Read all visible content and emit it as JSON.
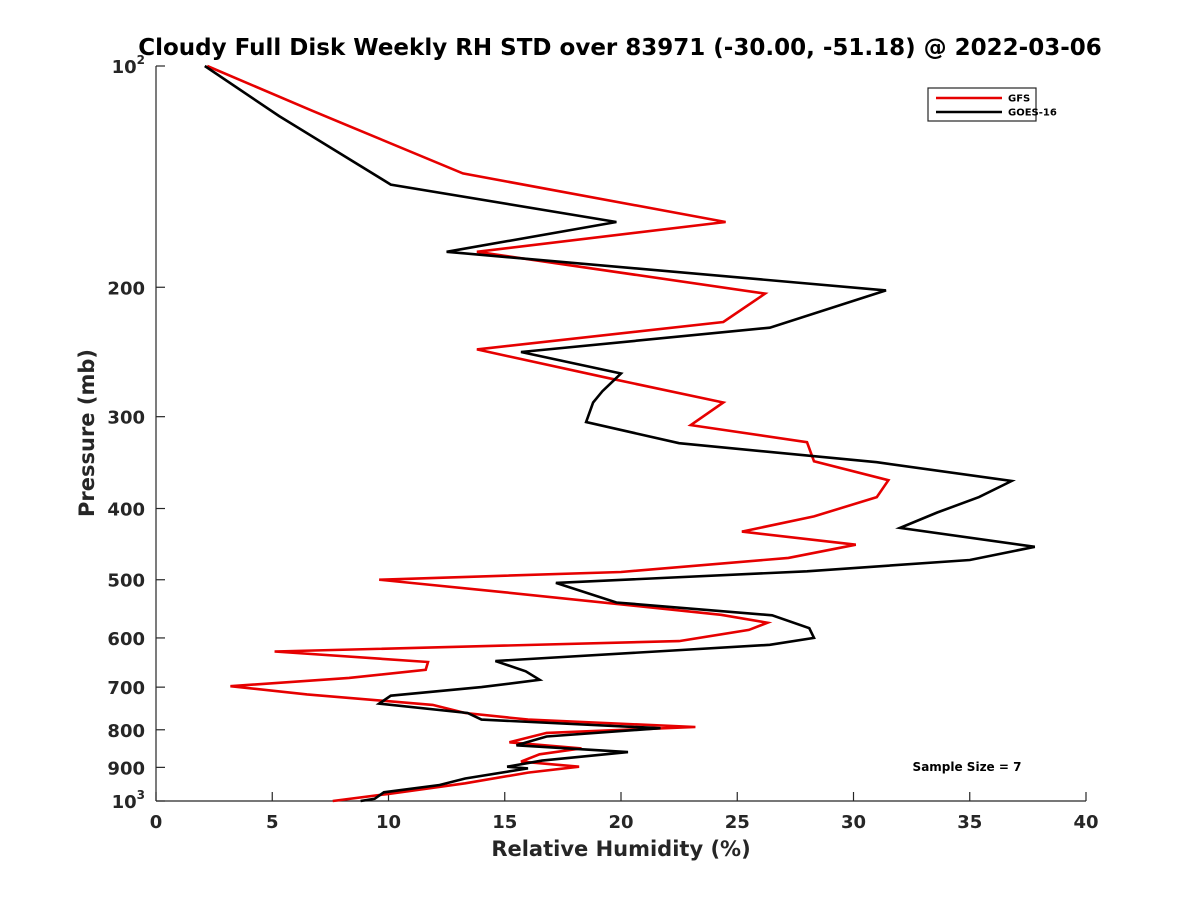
{
  "chart_data": {
    "type": "line",
    "title": "Cloudy Full Disk Weekly RH STD over 83971 (-30.00, -51.18) @ 2022-03-06",
    "xlabel": "Relative Humidity (%)",
    "ylabel": "Pressure (mb)",
    "xlim": [
      0,
      40
    ],
    "ylim": [
      100,
      1000
    ],
    "y_scale": "log",
    "y_reversed": true,
    "x_ticks": [
      0,
      5,
      10,
      15,
      20,
      25,
      30,
      35,
      40
    ],
    "y_ticks": [
      {
        "value": 100,
        "label": "10",
        "sup": "2"
      },
      {
        "value": 200,
        "label": "200"
      },
      {
        "value": 300,
        "label": "300"
      },
      {
        "value": 400,
        "label": "400"
      },
      {
        "value": 500,
        "label": "500"
      },
      {
        "value": 600,
        "label": "600"
      },
      {
        "value": 700,
        "label": "700"
      },
      {
        "value": 800,
        "label": "800"
      },
      {
        "value": 900,
        "label": "900"
      },
      {
        "value": 1000,
        "label": "10",
        "sup": "3"
      }
    ],
    "grid": false,
    "legend_position": "top-right",
    "annotation": "Sample Size = 7",
    "series": [
      {
        "name": "GFS",
        "color": "#e60000",
        "points": [
          [
            2.2,
            100
          ],
          [
            6.7,
            115
          ],
          [
            13.2,
            140
          ],
          [
            24.5,
            163
          ],
          [
            13.8,
            179
          ],
          [
            26.2,
            204
          ],
          [
            24.4,
            223
          ],
          [
            13.8,
            243
          ],
          [
            19.5,
            266
          ],
          [
            24.4,
            287
          ],
          [
            23.0,
            308
          ],
          [
            28.0,
            325
          ],
          [
            28.3,
            345
          ],
          [
            31.5,
            366
          ],
          [
            31.0,
            386
          ],
          [
            28.3,
            410
          ],
          [
            25.2,
            430
          ],
          [
            30.1,
            448
          ],
          [
            27.2,
            467
          ],
          [
            20.0,
            488
          ],
          [
            9.6,
            500
          ],
          [
            15.0,
            520
          ],
          [
            24.3,
            558
          ],
          [
            26.3,
            572
          ],
          [
            25.5,
            585
          ],
          [
            22.5,
            606
          ],
          [
            5.1,
            626
          ],
          [
            11.7,
            647
          ],
          [
            11.6,
            663
          ],
          [
            8.3,
            680
          ],
          [
            3.2,
            698
          ],
          [
            6.5,
            716
          ],
          [
            11.9,
            740
          ],
          [
            13.3,
            759
          ],
          [
            16.0,
            775
          ],
          [
            23.2,
            793
          ],
          [
            16.8,
            808
          ],
          [
            15.2,
            832
          ],
          [
            18.3,
            848
          ],
          [
            16.5,
            864
          ],
          [
            15.7,
            884
          ],
          [
            18.2,
            898
          ],
          [
            16.0,
            915
          ],
          [
            13.3,
            946
          ],
          [
            10.0,
            978
          ],
          [
            7.6,
            1000
          ]
        ]
      },
      {
        "name": "GOES-16",
        "color": "#000000",
        "points": [
          [
            2.1,
            100
          ],
          [
            5.3,
            117
          ],
          [
            10.1,
            145
          ],
          [
            19.8,
            163
          ],
          [
            12.5,
            179
          ],
          [
            31.4,
            202
          ],
          [
            26.4,
            227
          ],
          [
            15.7,
            245
          ],
          [
            20.0,
            262
          ],
          [
            19.2,
            277
          ],
          [
            18.8,
            287
          ],
          [
            18.5,
            305
          ],
          [
            22.5,
            326
          ],
          [
            31.0,
            346
          ],
          [
            36.8,
            367
          ],
          [
            35.4,
            386
          ],
          [
            33.6,
            405
          ],
          [
            32.0,
            425
          ],
          [
            37.8,
            451
          ],
          [
            35.0,
            470
          ],
          [
            28.0,
            487
          ],
          [
            17.2,
            505
          ],
          [
            19.8,
            537
          ],
          [
            26.5,
            559
          ],
          [
            28.1,
            582
          ],
          [
            28.3,
            600
          ],
          [
            26.4,
            613
          ],
          [
            14.6,
            645
          ],
          [
            15.9,
            666
          ],
          [
            16.5,
            684
          ],
          [
            14.0,
            700
          ],
          [
            10.1,
            719
          ],
          [
            9.6,
            737
          ],
          [
            13.4,
            759
          ],
          [
            14.0,
            775
          ],
          [
            21.7,
            796
          ],
          [
            16.8,
            817
          ],
          [
            15.5,
            840
          ],
          [
            20.3,
            858
          ],
          [
            16.6,
            881
          ],
          [
            15.1,
            898
          ],
          [
            16.0,
            903
          ],
          [
            13.3,
            932
          ],
          [
            12.2,
            951
          ],
          [
            9.8,
            973
          ],
          [
            9.4,
            993
          ],
          [
            8.8,
            1000
          ]
        ]
      }
    ]
  }
}
